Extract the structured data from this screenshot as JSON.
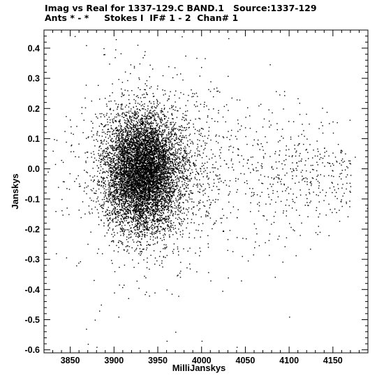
{
  "header": {
    "line1": "Imag vs Real for 1337-129.C BAND.1   Source:1337-129",
    "line2": "Ants * - *     Stokes I  IF# 1 - 2  Chan# 1"
  },
  "chart_data": {
    "type": "scatter",
    "title": "Imag vs Real for 1337-129.C BAND.1   Source:1337-129",
    "subtitle": "Ants * - *     Stokes I  IF# 1 - 2  Chan# 1",
    "xlabel": "MilliJanskys",
    "ylabel": "Janskys",
    "xlim": [
      3820,
      3190
    ],
    "ylim": [
      -0.61,
      0.46
    ],
    "xticks": [
      {
        "value": 3850,
        "label": "3850"
      },
      {
        "value": 3900,
        "label": "3900"
      },
      {
        "value": 3950,
        "label": "3950"
      },
      {
        "value": 4000,
        "label": "4000"
      },
      {
        "value": 4050,
        "label": "4050"
      },
      {
        "value": 4100,
        "label": "4100"
      },
      {
        "value": 4150,
        "label": "4150"
      }
    ],
    "yticks": [
      {
        "value": 0.4,
        "label": "0.4"
      },
      {
        "value": 0.3,
        "label": "0.3"
      },
      {
        "value": 0.2,
        "label": "0.2"
      },
      {
        "value": 0.1,
        "label": "0.1"
      },
      {
        "value": 0.0,
        "label": "0.0"
      },
      {
        "value": -0.1,
        "label": "-0.1"
      },
      {
        "value": -0.2,
        "label": "-0.2"
      },
      {
        "value": -0.3,
        "label": "-0.3"
      },
      {
        "value": -0.4,
        "label": "-0.4"
      },
      {
        "value": -0.5,
        "label": "-0.5"
      },
      {
        "value": -0.6,
        "label": "-0.6"
      }
    ],
    "grid": false,
    "marker_color": "#000000",
    "point_count": 9000,
    "points": [
      [
        3855,
        0.44
      ],
      [
        3868,
        0.41
      ],
      [
        3888,
        0.4
      ],
      [
        3889,
        0.38
      ],
      [
        3902,
        0.43
      ],
      [
        3935,
        0.39
      ],
      [
        3962,
        0.34
      ],
      [
        4010,
        0.29
      ],
      [
        4040,
        0.23
      ],
      [
        4065,
        0.21
      ],
      [
        4093,
        0.2
      ],
      [
        4138,
        0.12
      ],
      [
        4150,
        0.12
      ],
      [
        4120,
        0.1
      ],
      [
        4140,
        0.07
      ],
      [
        4160,
        0.06
      ],
      [
        4175,
        0.04
      ],
      [
        4140,
        0.01
      ],
      [
        4170,
        -0.02
      ],
      [
        4155,
        -0.05
      ],
      [
        4189,
        -0.13
      ],
      [
        4100,
        -0.18
      ],
      [
        4130,
        -0.21
      ],
      [
        4145,
        -0.22
      ],
      [
        4120,
        -0.11
      ],
      [
        4030,
        -0.36
      ],
      [
        4045,
        -0.37
      ],
      [
        4060,
        -0.26
      ],
      [
        4010,
        -0.37
      ],
      [
        3994,
        -0.34
      ],
      [
        3960,
        -0.4
      ],
      [
        3940,
        -0.42
      ],
      [
        3905,
        -0.49
      ],
      [
        3900,
        -0.41
      ],
      [
        3883,
        -0.47
      ],
      [
        3878,
        -0.5
      ],
      [
        3868,
        -0.53
      ],
      [
        3885,
        -0.45
      ],
      [
        3970,
        -0.54
      ],
      [
        3960,
        -0.57
      ],
      [
        4000,
        -0.57
      ],
      [
        4040,
        -0.59
      ],
      [
        3880,
        -0.59
      ],
      [
        3870,
        -0.58
      ],
      [
        4100,
        -0.49
      ],
      [
        3830,
        0.06
      ],
      [
        3836,
        -0.06
      ],
      [
        3840,
        -0.1
      ],
      [
        3848,
        -0.15
      ],
      [
        3845,
        0.09
      ]
    ]
  }
}
